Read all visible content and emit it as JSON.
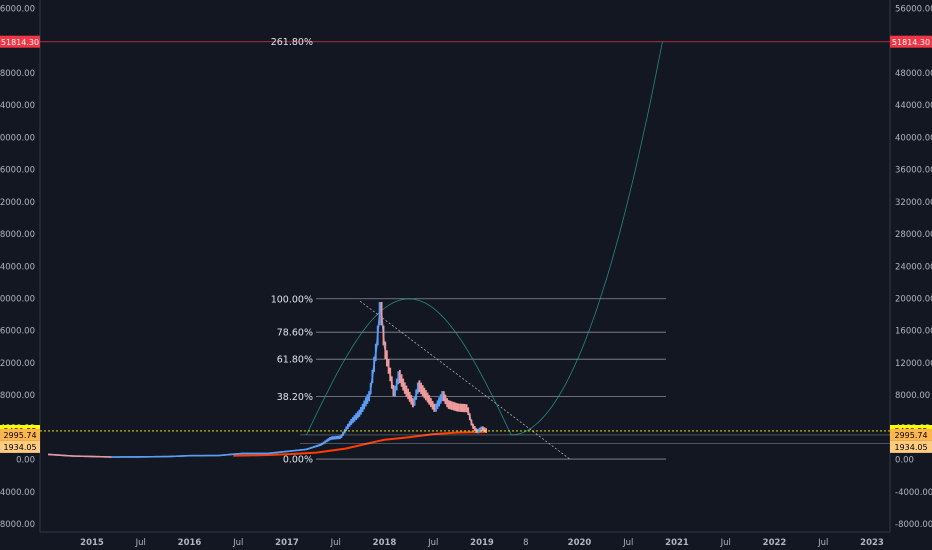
{
  "chart_data": {
    "type": "candlestick",
    "ylim": [
      -9000,
      57500
    ],
    "y_ticks": [
      "56000.00",
      "52000.00",
      "48000.00",
      "44000.00",
      "40000.00",
      "36000.00",
      "32000.00",
      "28000.00",
      "24000.00",
      "20000.00",
      "16000.00",
      "12000.00",
      "8000.00",
      "4000.00",
      "0.00",
      "-4000.00",
      "-8000.00"
    ],
    "y_tick_values": [
      56000,
      52000,
      48000,
      44000,
      40000,
      36000,
      32000,
      28000,
      24000,
      20000,
      16000,
      12000,
      8000,
      4000,
      0,
      -4000,
      -8000
    ],
    "x_ticks": [
      {
        "label": "2015",
        "t": 2015.0
      },
      {
        "label": "Jul",
        "t": 2015.5
      },
      {
        "label": "2016",
        "t": 2016.0
      },
      {
        "label": "Jul",
        "t": 2016.5
      },
      {
        "label": "2017",
        "t": 2017.0
      },
      {
        "label": "Jul",
        "t": 2017.5
      },
      {
        "label": "2018",
        "t": 2018.0
      },
      {
        "label": "Jul",
        "t": 2018.5
      },
      {
        "label": "2019",
        "t": 2019.0
      },
      {
        "label": "8",
        "t": 2019.45
      },
      {
        "label": "2020",
        "t": 2020.0
      },
      {
        "label": "Jul",
        "t": 2020.5
      },
      {
        "label": "2021",
        "t": 2021.0
      },
      {
        "label": "Jul",
        "t": 2021.5
      },
      {
        "label": "2022",
        "t": 2022.0
      },
      {
        "label": "Jul",
        "t": 2022.5
      },
      {
        "label": "2023",
        "t": 2023.0
      }
    ],
    "price_labels": [
      {
        "text": "51814.30",
        "value": 51814.3,
        "color": "#f23645",
        "text_color": "#ffffff"
      },
      {
        "text": "3489.55",
        "value": 3489.55,
        "color": "#ffff00",
        "text_color": "#000000"
      },
      {
        "text": "2995.74",
        "value": 2995.74,
        "color": "#ffb74d",
        "text_color": "#000000"
      },
      {
        "text": "1934.05",
        "value": 1934.05,
        "color": "#ffcc80",
        "text_color": "#000000"
      }
    ],
    "fib_levels": [
      {
        "label": "261.80%",
        "value": 51814.3,
        "color": "#f23645"
      },
      {
        "label": "100.00%",
        "value": 19900,
        "color": "#b2b5be"
      },
      {
        "label": "78.60%",
        "value": 15750,
        "color": "#b2b5be"
      },
      {
        "label": "61.80%",
        "value": 12400,
        "color": "#b2b5be"
      },
      {
        "label": "38.20%",
        "value": 7750,
        "color": "#b2b5be"
      },
      {
        "label": "0.00%",
        "value": 0,
        "color": "#b2b5be"
      }
    ],
    "price_series": [
      {
        "t": 2014.55,
        "v": 580
      },
      {
        "t": 2014.8,
        "v": 380
      },
      {
        "t": 2015.0,
        "v": 320
      },
      {
        "t": 2015.2,
        "v": 250
      },
      {
        "t": 2015.5,
        "v": 270
      },
      {
        "t": 2015.8,
        "v": 320
      },
      {
        "t": 2016.0,
        "v": 420
      },
      {
        "t": 2016.3,
        "v": 440
      },
      {
        "t": 2016.45,
        "v": 600
      },
      {
        "t": 2016.55,
        "v": 700
      },
      {
        "t": 2016.8,
        "v": 700
      },
      {
        "t": 2017.0,
        "v": 950
      },
      {
        "t": 2017.2,
        "v": 1200
      },
      {
        "t": 2017.35,
        "v": 1800
      },
      {
        "t": 2017.45,
        "v": 2600
      },
      {
        "t": 2017.55,
        "v": 2700
      },
      {
        "t": 2017.65,
        "v": 4500
      },
      {
        "t": 2017.75,
        "v": 5800
      },
      {
        "t": 2017.85,
        "v": 8000
      },
      {
        "t": 2017.92,
        "v": 14000
      },
      {
        "t": 2017.96,
        "v": 19400
      },
      {
        "t": 2018.0,
        "v": 14000
      },
      {
        "t": 2018.05,
        "v": 11000
      },
      {
        "t": 2018.1,
        "v": 8000
      },
      {
        "t": 2018.15,
        "v": 10500
      },
      {
        "t": 2018.2,
        "v": 9000
      },
      {
        "t": 2018.3,
        "v": 6800
      },
      {
        "t": 2018.35,
        "v": 9200
      },
      {
        "t": 2018.45,
        "v": 7500
      },
      {
        "t": 2018.52,
        "v": 6200
      },
      {
        "t": 2018.6,
        "v": 8000
      },
      {
        "t": 2018.65,
        "v": 6800
      },
      {
        "t": 2018.75,
        "v": 6400
      },
      {
        "t": 2018.85,
        "v": 6300
      },
      {
        "t": 2018.9,
        "v": 4200
      },
      {
        "t": 2018.95,
        "v": 3400
      },
      {
        "t": 2019.0,
        "v": 3800
      },
      {
        "t": 2019.05,
        "v": 3500
      }
    ],
    "moving_average": [
      {
        "t": 2016.45,
        "v": 400
      },
      {
        "t": 2016.8,
        "v": 500
      },
      {
        "t": 2017.0,
        "v": 600
      },
      {
        "t": 2017.3,
        "v": 800
      },
      {
        "t": 2017.6,
        "v": 1300
      },
      {
        "t": 2017.85,
        "v": 2000
      },
      {
        "t": 2018.0,
        "v": 2400
      },
      {
        "t": 2018.25,
        "v": 2700
      },
      {
        "t": 2018.5,
        "v": 3100
      },
      {
        "t": 2018.75,
        "v": 3300
      },
      {
        "t": 2019.0,
        "v": 3350
      },
      {
        "t": 2019.05,
        "v": 3400
      }
    ],
    "fib_circle": {
      "t_start": 2017.2,
      "t_peak": 2017.95,
      "t_mid": 2019.3,
      "peak": 19900,
      "base": 2995.74,
      "t_end": 2020.85,
      "end": 51814.3
    },
    "trendline": {
      "t1": 2017.75,
      "v1": 19600,
      "t2": 2019.9,
      "v2": 0
    },
    "grid": false,
    "legend": "none"
  }
}
